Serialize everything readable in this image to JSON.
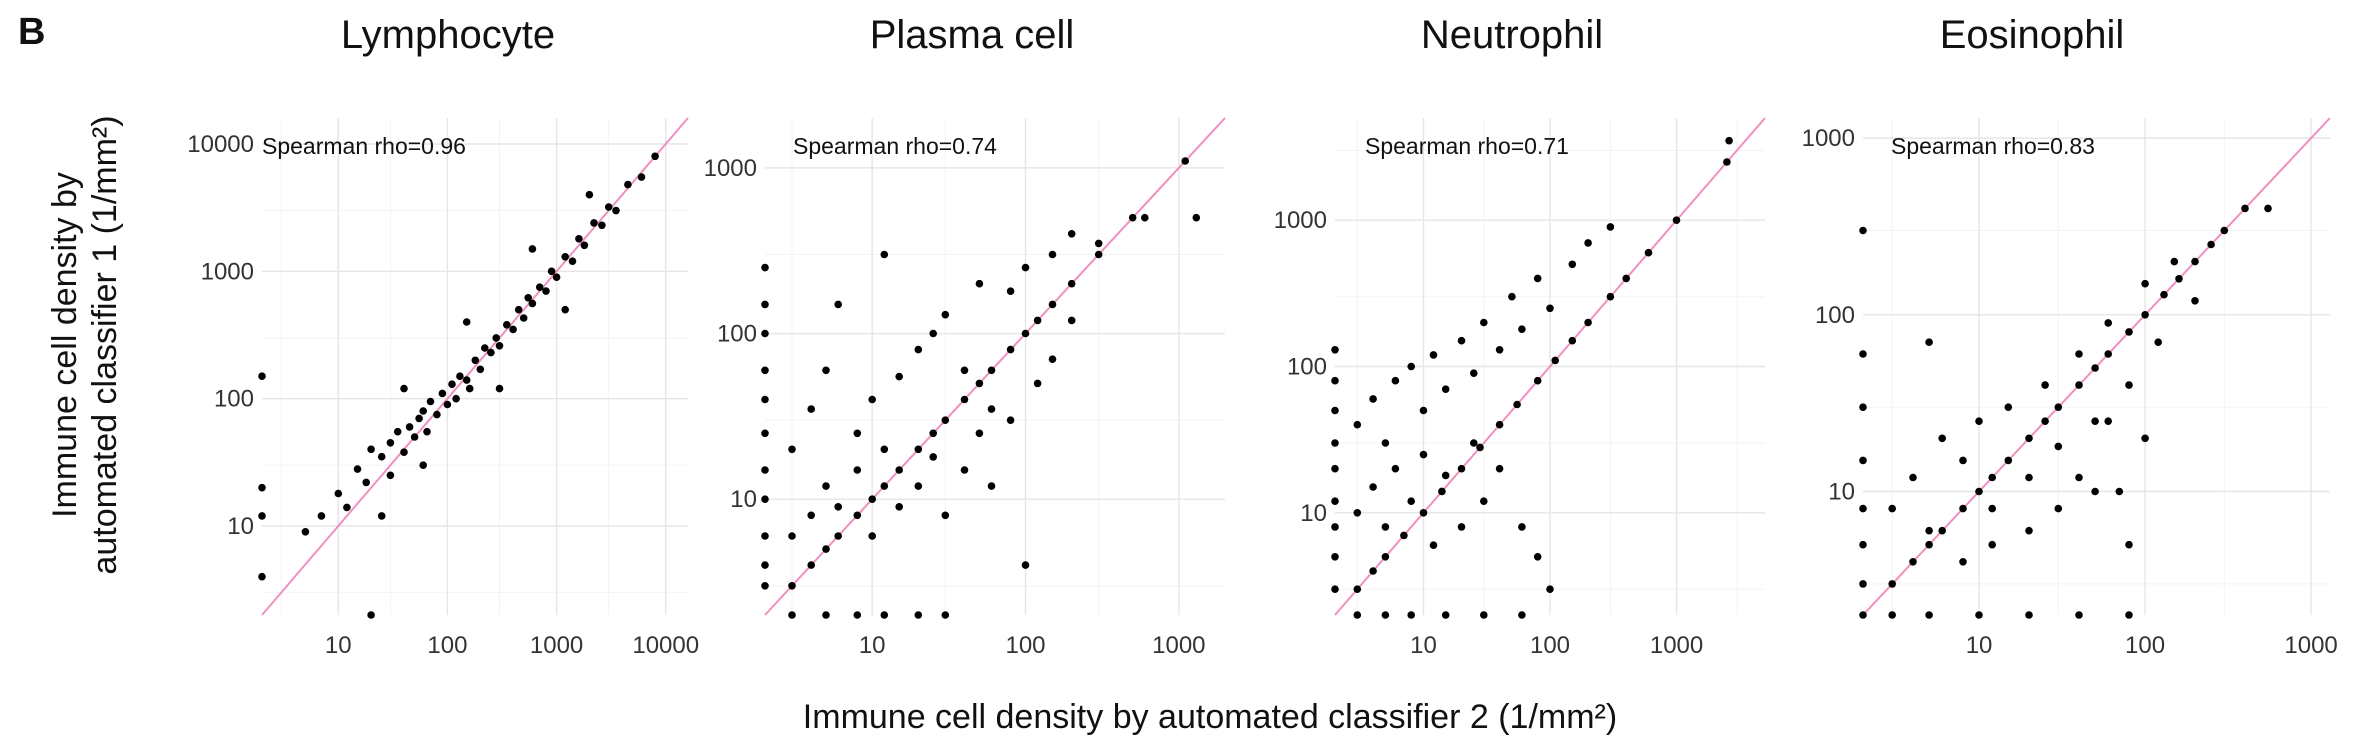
{
  "panel_letter": "B",
  "x_axis_label": "Immune cell density by automated classifier 2 (1/mm²)",
  "y_axis_label_line1": "Immune cell density by",
  "y_axis_label_line2": "automated classifier 1 (1/mm²)",
  "colors": {
    "points": "#000000",
    "identity_line": "#f08fc0",
    "grid": "#e6e6e6"
  },
  "chart_data": [
    {
      "type": "scatter",
      "title": "Lymphocyte",
      "annotation": "Spearman rho=0.96",
      "xscale": "log10",
      "yscale": "log10",
      "xlim": [
        2,
        16000
      ],
      "ylim": [
        2,
        16000
      ],
      "xticks": [
        10,
        100,
        1000,
        10000
      ],
      "xtick_labels": [
        "10",
        "100",
        "1000",
        "10000"
      ],
      "yticks": [
        10,
        100,
        1000,
        10000
      ],
      "ytick_labels": [
        "10",
        "100",
        "1000",
        "10000"
      ],
      "identity_line": true,
      "points": [
        [
          5,
          9
        ],
        [
          7,
          12
        ],
        [
          10,
          18
        ],
        [
          12,
          14
        ],
        [
          15,
          28
        ],
        [
          18,
          22
        ],
        [
          20,
          40
        ],
        [
          25,
          35
        ],
        [
          30,
          25
        ],
        [
          30,
          45
        ],
        [
          35,
          55
        ],
        [
          40,
          38
        ],
        [
          45,
          60
        ],
        [
          50,
          50
        ],
        [
          55,
          70
        ],
        [
          60,
          80
        ],
        [
          65,
          55
        ],
        [
          70,
          95
        ],
        [
          80,
          75
        ],
        [
          90,
          110
        ],
        [
          100,
          90
        ],
        [
          110,
          130
        ],
        [
          120,
          100
        ],
        [
          130,
          150
        ],
        [
          150,
          140
        ],
        [
          160,
          120
        ],
        [
          180,
          200
        ],
        [
          200,
          170
        ],
        [
          220,
          250
        ],
        [
          250,
          230
        ],
        [
          280,
          300
        ],
        [
          300,
          260
        ],
        [
          350,
          380
        ],
        [
          400,
          350
        ],
        [
          450,
          500
        ],
        [
          500,
          430
        ],
        [
          550,
          620
        ],
        [
          600,
          560
        ],
        [
          700,
          750
        ],
        [
          800,
          700
        ],
        [
          900,
          1000
        ],
        [
          1000,
          900
        ],
        [
          1200,
          1300
        ],
        [
          1400,
          1200
        ],
        [
          1600,
          1800
        ],
        [
          1800,
          1600
        ],
        [
          2200,
          2400
        ],
        [
          2600,
          2300
        ],
        [
          3000,
          3200
        ],
        [
          3500,
          3000
        ],
        [
          4500,
          4800
        ],
        [
          6000,
          5500
        ],
        [
          8000,
          8000
        ],
        [
          2,
          150
        ],
        [
          2,
          20
        ],
        [
          2,
          12
        ],
        [
          2,
          4
        ],
        [
          20,
          2
        ],
        [
          25,
          12
        ],
        [
          40,
          120
        ],
        [
          60,
          30
        ],
        [
          150,
          400
        ],
        [
          300,
          120
        ],
        [
          600,
          1500
        ],
        [
          1200,
          500
        ],
        [
          2000,
          4000
        ]
      ]
    },
    {
      "type": "scatter",
      "title": "Plasma cell",
      "annotation": "Spearman rho=0.74",
      "xscale": "log10",
      "yscale": "log10",
      "xlim": [
        2,
        2000
      ],
      "ylim": [
        2,
        2000
      ],
      "xticks": [
        10,
        100,
        1000
      ],
      "xtick_labels": [
        "10",
        "100",
        "1000"
      ],
      "yticks": [
        10,
        100,
        1000
      ],
      "ytick_labels": [
        "10",
        "100",
        "1000"
      ],
      "identity_line": true,
      "points": [
        [
          2,
          250
        ],
        [
          2,
          150
        ],
        [
          2,
          100
        ],
        [
          2,
          60
        ],
        [
          2,
          40
        ],
        [
          2,
          25
        ],
        [
          2,
          15
        ],
        [
          2,
          10
        ],
        [
          2,
          6
        ],
        [
          2,
          4
        ],
        [
          2,
          3
        ],
        [
          3,
          2
        ],
        [
          5,
          2
        ],
        [
          8,
          2
        ],
        [
          12,
          2
        ],
        [
          20,
          2
        ],
        [
          30,
          2
        ],
        [
          3,
          3
        ],
        [
          4,
          4
        ],
        [
          5,
          5
        ],
        [
          6,
          6
        ],
        [
          8,
          8
        ],
        [
          10,
          10
        ],
        [
          12,
          12
        ],
        [
          15,
          15
        ],
        [
          20,
          20
        ],
        [
          25,
          25
        ],
        [
          30,
          30
        ],
        [
          40,
          40
        ],
        [
          50,
          50
        ],
        [
          60,
          60
        ],
        [
          80,
          80
        ],
        [
          100,
          100
        ],
        [
          120,
          120
        ],
        [
          150,
          150
        ],
        [
          200,
          200
        ],
        [
          300,
          300
        ],
        [
          500,
          500
        ],
        [
          1100,
          1100
        ],
        [
          3,
          20
        ],
        [
          4,
          35
        ],
        [
          5,
          60
        ],
        [
          6,
          150
        ],
        [
          8,
          25
        ],
        [
          10,
          40
        ],
        [
          12,
          300
        ],
        [
          15,
          55
        ],
        [
          20,
          80
        ],
        [
          25,
          100
        ],
        [
          30,
          130
        ],
        [
          40,
          60
        ],
        [
          50,
          200
        ],
        [
          60,
          35
        ],
        [
          80,
          180
        ],
        [
          100,
          250
        ],
        [
          150,
          300
        ],
        [
          200,
          400
        ],
        [
          300,
          350
        ],
        [
          600,
          500
        ],
        [
          1300,
          500
        ],
        [
          3,
          6
        ],
        [
          4,
          8
        ],
        [
          5,
          12
        ],
        [
          6,
          9
        ],
        [
          8,
          15
        ],
        [
          10,
          6
        ],
        [
          12,
          20
        ],
        [
          15,
          9
        ],
        [
          20,
          12
        ],
        [
          25,
          18
        ],
        [
          30,
          8
        ],
        [
          40,
          15
        ],
        [
          50,
          25
        ],
        [
          60,
          12
        ],
        [
          80,
          30
        ],
        [
          100,
          4
        ],
        [
          120,
          50
        ],
        [
          150,
          70
        ],
        [
          200,
          120
        ]
      ]
    },
    {
      "type": "scatter",
      "title": "Neutrophil",
      "annotation": "Spearman rho=0.71",
      "xscale": "log10",
      "yscale": "log10",
      "xlim": [
        2,
        5000
      ],
      "ylim": [
        2,
        5000
      ],
      "xticks": [
        10,
        100,
        1000
      ],
      "xtick_labels": [
        "10",
        "100",
        "1000"
      ],
      "yticks": [
        10,
        100,
        1000
      ],
      "ytick_labels": [
        "10",
        "100",
        "1000"
      ],
      "identity_line": true,
      "points": [
        [
          2,
          130
        ],
        [
          2,
          80
        ],
        [
          2,
          50
        ],
        [
          2,
          30
        ],
        [
          2,
          20
        ],
        [
          2,
          12
        ],
        [
          2,
          8
        ],
        [
          2,
          5
        ],
        [
          2,
          3
        ],
        [
          3,
          2
        ],
        [
          5,
          2
        ],
        [
          8,
          2
        ],
        [
          15,
          2
        ],
        [
          30,
          2
        ],
        [
          60,
          2
        ],
        [
          3,
          3
        ],
        [
          4,
          4
        ],
        [
          5,
          5
        ],
        [
          7,
          7
        ],
        [
          10,
          10
        ],
        [
          14,
          14
        ],
        [
          20,
          20
        ],
        [
          28,
          28
        ],
        [
          40,
          40
        ],
        [
          55,
          55
        ],
        [
          80,
          80
        ],
        [
          110,
          110
        ],
        [
          150,
          150
        ],
        [
          200,
          200
        ],
        [
          300,
          300
        ],
        [
          600,
          600
        ],
        [
          3,
          40
        ],
        [
          4,
          60
        ],
        [
          5,
          30
        ],
        [
          6,
          80
        ],
        [
          8,
          100
        ],
        [
          10,
          50
        ],
        [
          12,
          120
        ],
        [
          15,
          70
        ],
        [
          20,
          150
        ],
        [
          25,
          90
        ],
        [
          30,
          200
        ],
        [
          40,
          130
        ],
        [
          50,
          300
        ],
        [
          60,
          180
        ],
        [
          80,
          400
        ],
        [
          100,
          250
        ],
        [
          150,
          500
        ],
        [
          200,
          700
        ],
        [
          300,
          900
        ],
        [
          400,
          400
        ],
        [
          1000,
          1000
        ],
        [
          2500,
          2500
        ],
        [
          2600,
          3500
        ],
        [
          3,
          10
        ],
        [
          4,
          15
        ],
        [
          5,
          8
        ],
        [
          6,
          20
        ],
        [
          8,
          12
        ],
        [
          10,
          25
        ],
        [
          12,
          6
        ],
        [
          15,
          18
        ],
        [
          20,
          8
        ],
        [
          25,
          30
        ],
        [
          30,
          12
        ],
        [
          40,
          20
        ],
        [
          60,
          8
        ],
        [
          80,
          5
        ],
        [
          100,
          3
        ]
      ]
    },
    {
      "type": "scatter",
      "title": "Eosinophil",
      "annotation": "Spearman rho=0.83",
      "xscale": "log10",
      "yscale": "log10",
      "xlim": [
        2,
        1300
      ],
      "ylim": [
        2,
        1300
      ],
      "xticks": [
        10,
        100,
        1000
      ],
      "xtick_labels": [
        "10",
        "100",
        "1000"
      ],
      "yticks": [
        10,
        100,
        1000
      ],
      "ytick_labels": [
        "10",
        "100",
        "1000"
      ],
      "identity_line": true,
      "points": [
        [
          2,
          300
        ],
        [
          2,
          60
        ],
        [
          2,
          30
        ],
        [
          2,
          15
        ],
        [
          2,
          8
        ],
        [
          2,
          5
        ],
        [
          2,
          3
        ],
        [
          3,
          2
        ],
        [
          5,
          2
        ],
        [
          10,
          2
        ],
        [
          20,
          2
        ],
        [
          40,
          2
        ],
        [
          80,
          2
        ],
        [
          2,
          2
        ],
        [
          3,
          3
        ],
        [
          4,
          4
        ],
        [
          5,
          5
        ],
        [
          6,
          6
        ],
        [
          8,
          8
        ],
        [
          10,
          10
        ],
        [
          12,
          12
        ],
        [
          15,
          15
        ],
        [
          20,
          20
        ],
        [
          25,
          25
        ],
        [
          30,
          30
        ],
        [
          40,
          40
        ],
        [
          50,
          50
        ],
        [
          60,
          60
        ],
        [
          80,
          80
        ],
        [
          100,
          100
        ],
        [
          130,
          130
        ],
        [
          160,
          160
        ],
        [
          200,
          200
        ],
        [
          250,
          250
        ],
        [
          300,
          300
        ],
        [
          400,
          400
        ],
        [
          550,
          400
        ],
        [
          3,
          8
        ],
        [
          4,
          12
        ],
        [
          5,
          6
        ],
        [
          6,
          20
        ],
        [
          8,
          15
        ],
        [
          10,
          25
        ],
        [
          12,
          8
        ],
        [
          15,
          30
        ],
        [
          20,
          12
        ],
        [
          25,
          40
        ],
        [
          30,
          18
        ],
        [
          40,
          60
        ],
        [
          50,
          25
        ],
        [
          60,
          90
        ],
        [
          80,
          40
        ],
        [
          100,
          150
        ],
        [
          120,
          70
        ],
        [
          150,
          200
        ],
        [
          200,
          120
        ],
        [
          5,
          70
        ],
        [
          8,
          4
        ],
        [
          12,
          5
        ],
        [
          20,
          6
        ],
        [
          30,
          8
        ],
        [
          50,
          10
        ],
        [
          70,
          10
        ],
        [
          80,
          5
        ],
        [
          100,
          20
        ],
        [
          60,
          25
        ],
        [
          40,
          12
        ]
      ]
    }
  ]
}
